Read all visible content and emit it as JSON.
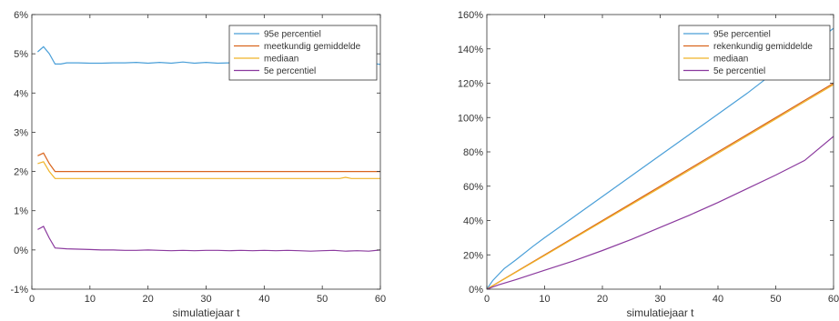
{
  "chart_data": [
    {
      "type": "line",
      "xlabel": "simulatiejaar t",
      "ylabel": "",
      "xlim": [
        0,
        60
      ],
      "ylim": [
        -1,
        6
      ],
      "xticks": [
        0,
        10,
        20,
        30,
        40,
        50,
        60
      ],
      "xtick_labels": [
        "0",
        "10",
        "20",
        "30",
        "40",
        "50",
        "60"
      ],
      "yticks": [
        -1,
        0,
        1,
        2,
        3,
        4,
        5,
        6
      ],
      "ytick_labels": [
        "-1%",
        "0%",
        "1%",
        "2%",
        "3%",
        "4%",
        "5%",
        "6%"
      ],
      "grid": false,
      "legend_position": "top-right",
      "series": [
        {
          "name": "95e percentiel",
          "color": "#4a9fd8",
          "x": [
            1,
            2,
            3,
            4,
            5,
            6,
            8,
            10,
            12,
            14,
            16,
            18,
            20,
            22,
            24,
            26,
            28,
            30,
            32,
            34,
            36,
            38,
            40,
            42,
            44,
            46,
            48,
            50,
            52,
            54,
            56,
            58,
            60
          ],
          "y": [
            5.05,
            5.18,
            5.0,
            4.74,
            4.74,
            4.77,
            4.77,
            4.76,
            4.76,
            4.77,
            4.77,
            4.78,
            4.76,
            4.78,
            4.76,
            4.79,
            4.76,
            4.78,
            4.76,
            4.77,
            4.78,
            4.76,
            4.77,
            4.77,
            4.76,
            4.77,
            4.76,
            4.76,
            4.77,
            4.76,
            4.76,
            4.77,
            4.73
          ]
        },
        {
          "name": "meetkundig gemiddelde",
          "color": "#d9651e",
          "x": [
            1,
            2,
            3,
            4,
            10,
            20,
            30,
            40,
            50,
            60
          ],
          "y": [
            2.4,
            2.47,
            2.2,
            2.0,
            2.0,
            2.0,
            2.0,
            2.0,
            2.0,
            2.0
          ]
        },
        {
          "name": "mediaan",
          "color": "#f0b429",
          "x": [
            1,
            2,
            3,
            4,
            10,
            20,
            30,
            40,
            50,
            53,
            54,
            55,
            60
          ],
          "y": [
            2.2,
            2.25,
            2.0,
            1.82,
            1.82,
            1.82,
            1.82,
            1.82,
            1.82,
            1.82,
            1.85,
            1.82,
            1.82
          ]
        },
        {
          "name": "5e percentiel",
          "color": "#8b3a9e",
          "x": [
            1,
            2,
            3,
            4,
            6,
            8,
            10,
            12,
            14,
            16,
            18,
            20,
            22,
            24,
            26,
            28,
            30,
            32,
            34,
            36,
            38,
            40,
            42,
            44,
            46,
            48,
            50,
            52,
            54,
            56,
            58,
            60
          ],
          "y": [
            0.52,
            0.6,
            0.3,
            0.05,
            0.03,
            0.02,
            0.01,
            0.0,
            0.0,
            -0.01,
            -0.01,
            0.0,
            -0.01,
            -0.02,
            -0.01,
            -0.02,
            -0.01,
            -0.01,
            -0.02,
            -0.01,
            -0.02,
            -0.01,
            -0.02,
            -0.01,
            -0.02,
            -0.03,
            -0.02,
            -0.01,
            -0.03,
            -0.02,
            -0.03,
            0.0
          ]
        }
      ]
    },
    {
      "type": "line",
      "xlabel": "simulatiejaar t",
      "ylabel": "",
      "xlim": [
        0,
        60
      ],
      "ylim": [
        0,
        160
      ],
      "xticks": [
        0,
        10,
        20,
        30,
        40,
        50,
        60
      ],
      "xtick_labels": [
        "0",
        "10",
        "20",
        "30",
        "40",
        "50",
        "60"
      ],
      "yticks": [
        0,
        20,
        40,
        60,
        80,
        100,
        120,
        140,
        160
      ],
      "ytick_labels": [
        "0%",
        "20%",
        "40%",
        "60%",
        "80%",
        "100%",
        "120%",
        "140%",
        "160%"
      ],
      "grid": false,
      "legend_position": "top-right",
      "series": [
        {
          "name": "95e percentiel",
          "color": "#4a9fd8",
          "x": [
            0,
            1,
            2,
            3,
            5,
            8,
            10,
            15,
            20,
            25,
            30,
            35,
            40,
            45,
            50,
            55,
            60
          ],
          "y": [
            0,
            5,
            8.5,
            12,
            17,
            25,
            30,
            42,
            54,
            66,
            78,
            90,
            102,
            114,
            127,
            139,
            152
          ]
        },
        {
          "name": "rekenkundig gemiddelde",
          "color": "#d9651e",
          "x": [
            0,
            10,
            20,
            30,
            40,
            50,
            60
          ],
          "y": [
            0,
            20,
            40,
            60,
            80,
            100,
            120
          ]
        },
        {
          "name": "mediaan",
          "color": "#f0b429",
          "x": [
            0,
            10,
            20,
            30,
            40,
            50,
            60
          ],
          "y": [
            0,
            19.6,
            39.4,
            59.2,
            79.2,
            99.2,
            119.2
          ]
        },
        {
          "name": "5e percentiel",
          "color": "#8b3a9e",
          "x": [
            0,
            2,
            5,
            10,
            15,
            20,
            25,
            30,
            35,
            40,
            45,
            50,
            55,
            60
          ],
          "y": [
            0,
            2.5,
            5.5,
            11,
            16.5,
            22.5,
            29,
            36,
            43,
            50.5,
            58.5,
            66.5,
            75,
            89
          ]
        }
      ]
    }
  ]
}
